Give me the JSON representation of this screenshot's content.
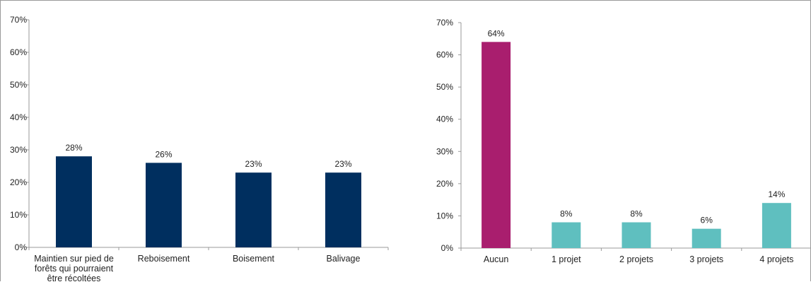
{
  "chart_data": [
    {
      "type": "bar",
      "title": "",
      "xlabel": "",
      "ylabel": "",
      "ylim": [
        0,
        70
      ],
      "yticks": [
        "0%",
        "10%",
        "20%",
        "30%",
        "40%",
        "50%",
        "60%",
        "70%"
      ],
      "grid": false,
      "categories": [
        [
          "Maintien sur pied de",
          "forêts qui pourraient",
          "être récoltées"
        ],
        [
          "Reboisement"
        ],
        [
          "Boisement"
        ],
        [
          "Balivage"
        ]
      ],
      "values": [
        28,
        26,
        23,
        23
      ],
      "value_labels": [
        "28%",
        "26%",
        "23%",
        "23%"
      ],
      "colors": [
        "#002F5F",
        "#002F5F",
        "#002F5F",
        "#002F5F"
      ]
    },
    {
      "type": "bar",
      "title": "",
      "xlabel": "",
      "ylabel": "",
      "ylim": [
        0,
        70
      ],
      "yticks": [
        "0%",
        "10%",
        "20%",
        "30%",
        "40%",
        "50%",
        "60%",
        "70%"
      ],
      "grid": false,
      "categories": [
        [
          "Aucun"
        ],
        [
          "1 projet"
        ],
        [
          "2 projets"
        ],
        [
          "3 projets"
        ],
        [
          "4 projets"
        ]
      ],
      "values": [
        64,
        8,
        8,
        6,
        14
      ],
      "value_labels": [
        "64%",
        "8%",
        "8%",
        "6%",
        "14%"
      ],
      "colors": [
        "#A91E6E",
        "#5FBFBF",
        "#5FBFBF",
        "#5FBFBF",
        "#5FBFBF"
      ]
    }
  ]
}
